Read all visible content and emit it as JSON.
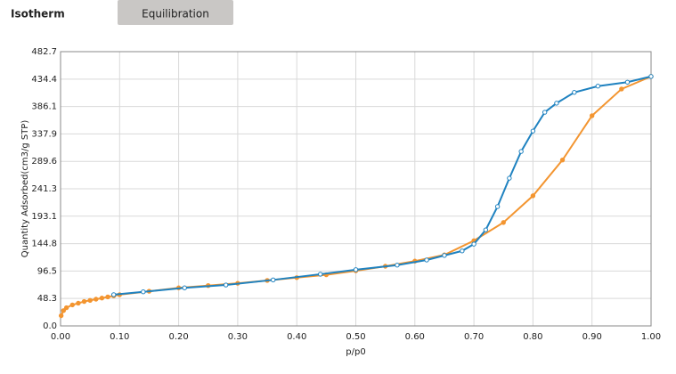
{
  "tabs": [
    "Isotherm",
    "Equilibration"
  ],
  "chart_data": {
    "type": "line",
    "x_label": "p/p0",
    "y_label": "Quantity Adsorbed(cm3/g STP)",
    "xlim": [
      0,
      1
    ],
    "ylim": [
      0,
      482.7
    ],
    "grid": true,
    "xticks": [
      {
        "value": 0,
        "label": "0.00"
      },
      {
        "value": 0.1,
        "label": "0.10"
      },
      {
        "value": 0.2,
        "label": "0.20"
      },
      {
        "value": 0.3,
        "label": "0.30"
      },
      {
        "value": 0.4,
        "label": "0.40"
      },
      {
        "value": 0.5,
        "label": "0.50"
      },
      {
        "value": 0.6,
        "label": "0.60"
      },
      {
        "value": 0.7,
        "label": "0.70"
      },
      {
        "value": 0.8,
        "label": "0.80"
      },
      {
        "value": 0.9,
        "label": "0.90"
      },
      {
        "value": 1,
        "label": "1.00"
      }
    ],
    "yticks": [
      {
        "value": 0,
        "label": "0.0"
      },
      48.3,
      96.5,
      144.8,
      193.1,
      241.3,
      289.6,
      337.9,
      386.1,
      434.4,
      482.7
    ],
    "series": [
      {
        "color": "#f39530",
        "x": [
          0.001,
          0.005,
          0.01,
          0.02,
          0.03,
          0.04,
          0.05,
          0.06,
          0.07,
          0.08,
          0.09,
          0.1,
          0.15,
          0.2,
          0.25,
          0.3,
          0.35,
          0.4,
          0.45,
          0.5,
          0.55,
          0.6,
          0.65,
          0.7,
          0.75,
          0.8,
          0.85,
          0.9,
          0.95,
          1.0
        ],
        "values": [
          18,
          27,
          32,
          37,
          40,
          43,
          45,
          47,
          49,
          51,
          53,
          55,
          61,
          67,
          71,
          75,
          80,
          85,
          90,
          97,
          105,
          114,
          125,
          150,
          182,
          229,
          292,
          370,
          417,
          439
        ]
      },
      {
        "color": "#1f82c0",
        "x": [
          1.0,
          0.96,
          0.91,
          0.87,
          0.84,
          0.82,
          0.8,
          0.78,
          0.76,
          0.74,
          0.72,
          0.7,
          0.68,
          0.65,
          0.62,
          0.57,
          0.5,
          0.44,
          0.36,
          0.28,
          0.21,
          0.14,
          0.09
        ],
        "values": [
          439,
          429,
          422,
          411,
          392,
          376,
          343,
          307,
          260,
          210,
          169,
          144,
          132,
          124,
          116,
          107,
          99,
          91,
          81,
          72,
          67,
          60,
          55
        ]
      }
    ]
  }
}
